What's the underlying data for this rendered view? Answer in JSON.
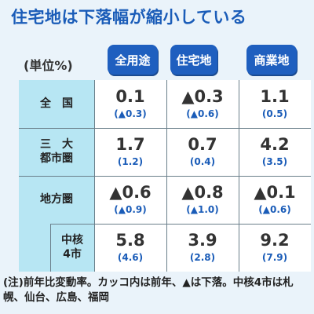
{
  "title": "住宅地は下落幅が縮小している",
  "unit_label": "(単位%)",
  "chart_data": {
    "type": "table",
    "columns": [
      "全用途",
      "住宅地",
      "商業地"
    ],
    "rows": [
      {
        "label": "全　国",
        "current": [
          "0.1",
          "▲0.3",
          "1.1"
        ],
        "previous": [
          "(▲0.3)",
          "(▲0.6)",
          "(0.5)"
        ]
      },
      {
        "label": "三　大\n都市圏",
        "current": [
          "1.7",
          "0.7",
          "4.2"
        ],
        "previous": [
          "(1.2)",
          "(0.4)",
          "(3.5)"
        ]
      },
      {
        "label": "地方圏",
        "current": [
          "▲0.6",
          "▲0.8",
          "▲0.1"
        ],
        "previous": [
          "(▲0.9)",
          "(▲1.0)",
          "(▲0.6)"
        ]
      },
      {
        "label": "中核\n4市",
        "current": [
          "5.8",
          "3.9",
          "9.2"
        ],
        "previous": [
          "(4.6)",
          "(2.8)",
          "(7.9)"
        ]
      }
    ]
  },
  "note": "(注)前年比変動率。カッコ内は前年、▲は下落。中核4市は札幌、仙台、広島、福岡",
  "colors": {
    "header_bg": "#1f5fbf",
    "label_bg": "#b7e6f3",
    "title": "#1a5cb8",
    "prev_value": "#1a5cb8"
  }
}
